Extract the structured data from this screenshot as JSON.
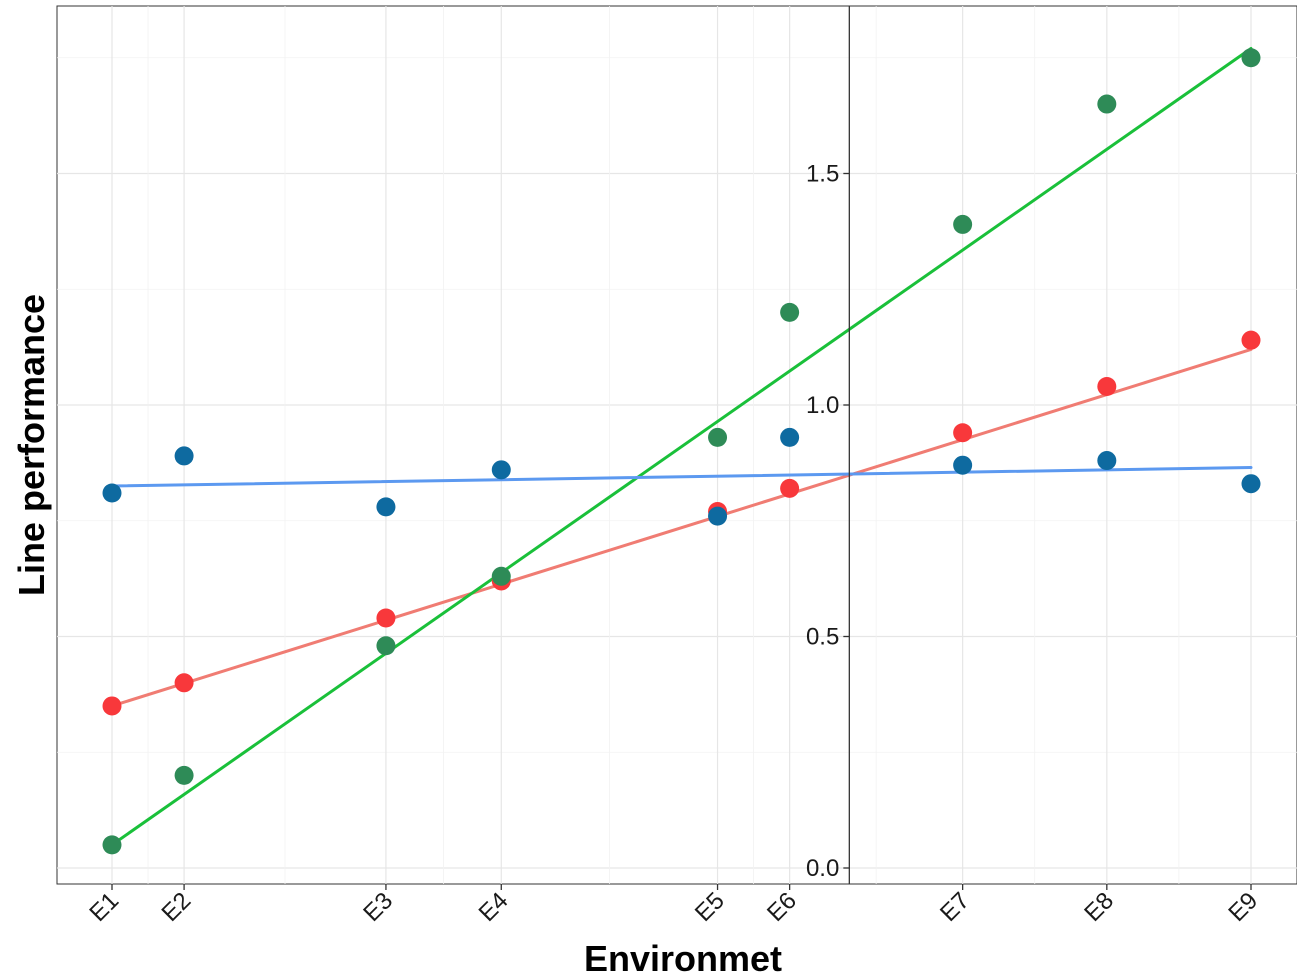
{
  "chart_data": {
    "type": "scatter",
    "title": "",
    "xlabel": "Environmet",
    "ylabel": "Line performance",
    "categories": [
      "E1",
      "E2",
      "E3",
      "E4",
      "E5",
      "E6",
      "E7",
      "E8",
      "E9"
    ],
    "x": [
      0.35,
      0.4,
      0.54,
      0.62,
      0.77,
      0.82,
      0.94,
      1.04,
      1.14
    ],
    "ylim": [
      -0.03,
      1.86
    ],
    "yticks": [
      "0.0",
      "0.5",
      "1.0",
      "1.5"
    ],
    "ytick_values": [
      0.0,
      0.5,
      1.0,
      1.5
    ],
    "y_axis_crosses_x": 0.8614,
    "grid": true,
    "legend": "none",
    "series": [
      {
        "point_color": "#f8383b",
        "line_color": "#f07c73",
        "values": [
          0.35,
          0.4,
          0.54,
          0.62,
          0.77,
          0.82,
          0.94,
          1.04,
          1.14
        ],
        "fit": [
          0.35,
          1.12
        ]
      },
      {
        "point_color": "#2e8b57",
        "line_color": "#1ac03a",
        "values": [
          0.05,
          0.2,
          0.48,
          0.63,
          0.93,
          1.2,
          1.39,
          1.65,
          1.75
        ],
        "fit": [
          0.05,
          1.77
        ]
      },
      {
        "point_color": "#0e6aa0",
        "line_color": "#5c99f0",
        "values": [
          0.81,
          0.89,
          0.78,
          0.86,
          0.76,
          0.93,
          0.87,
          0.88,
          0.83
        ],
        "fit": [
          0.825,
          0.865
        ]
      }
    ]
  }
}
